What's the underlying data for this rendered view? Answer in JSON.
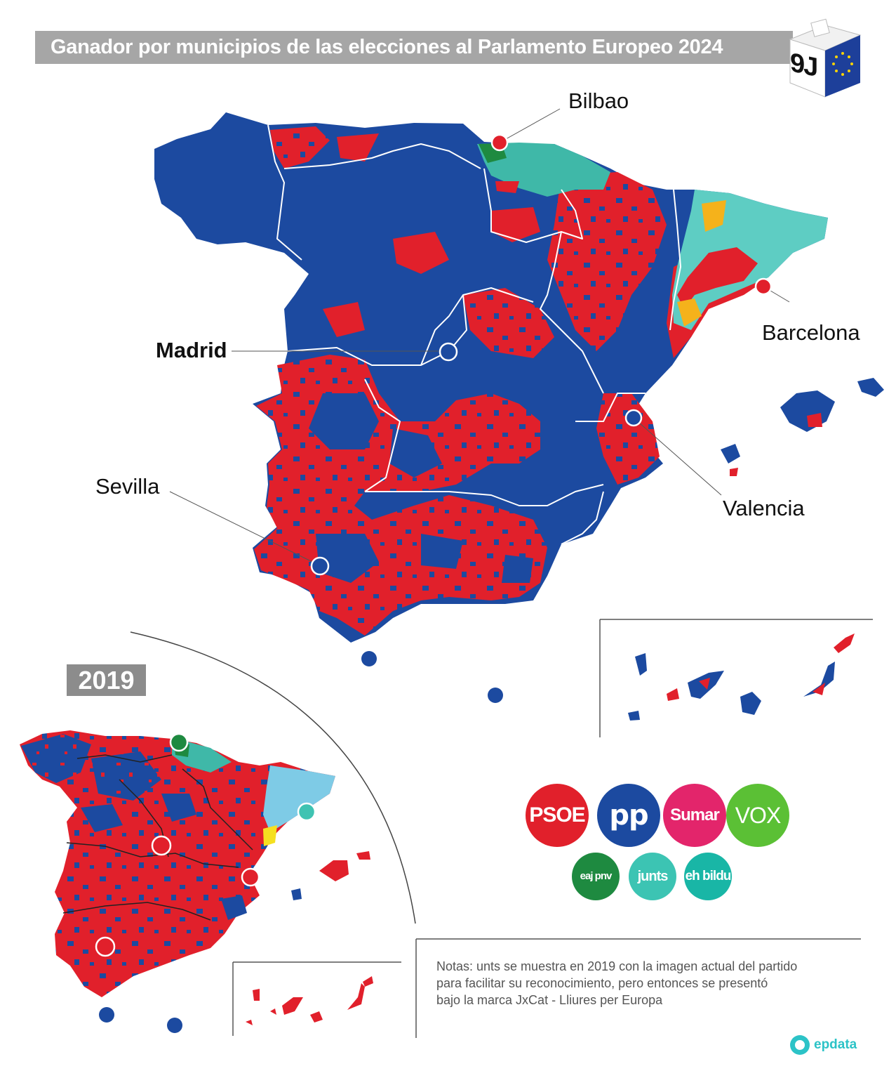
{
  "title": "Ganador por municipios de las elecciones al Parlamento Europeo 2024",
  "ballot_box": {
    "label": "9J",
    "icon": "ballot-box-eu-flag-icon"
  },
  "colors": {
    "psoe": "#e1202b",
    "pp": "#1c4aa0",
    "sumar": "#e3256b",
    "vox": "#5bc035",
    "pnv": "#1e8a40",
    "junts": "#3cc4b3",
    "bildu": "#19b6a6",
    "erc": "#f5b21b"
  },
  "map_2024": {
    "cities": [
      {
        "name": "Bilbao",
        "winner": "psoe",
        "bold": false
      },
      {
        "name": "Barcelona",
        "winner": "psoe",
        "bold": false
      },
      {
        "name": "Madrid",
        "winner": "pp",
        "bold": true
      },
      {
        "name": "Valencia",
        "winner": "pp",
        "bold": false
      },
      {
        "name": "Sevilla",
        "winner": "pp",
        "bold": false
      }
    ]
  },
  "map_2019": {
    "year": "2019",
    "cities": [
      {
        "city": "bilbao",
        "winner": "pnv"
      },
      {
        "city": "barcelona",
        "winner": "junts"
      },
      {
        "city": "madrid",
        "winner": "psoe"
      },
      {
        "city": "valencia",
        "winner": "psoe"
      },
      {
        "city": "sevilla",
        "winner": "psoe"
      }
    ]
  },
  "legend": {
    "parties": [
      {
        "label": "PSOE",
        "key": "psoe"
      },
      {
        "label": "pp",
        "key": "pp"
      },
      {
        "label": "Sumar",
        "key": "sumar"
      },
      {
        "label": "VOX",
        "key": "vox"
      },
      {
        "label": "eaj pnv",
        "key": "pnv"
      },
      {
        "label": "junts",
        "key": "junts"
      },
      {
        "label": "eh bildu",
        "key": "bildu"
      }
    ]
  },
  "notes": {
    "line1": "Notas: unts se muestra en 2019 con la imagen actual  del partido",
    "line2": "para facilitar su reconocimiento, pero entonces se presentó",
    "line3": "bajo la marca JxCat - Lliures per Europa"
  },
  "source": {
    "label": "epdata"
  }
}
